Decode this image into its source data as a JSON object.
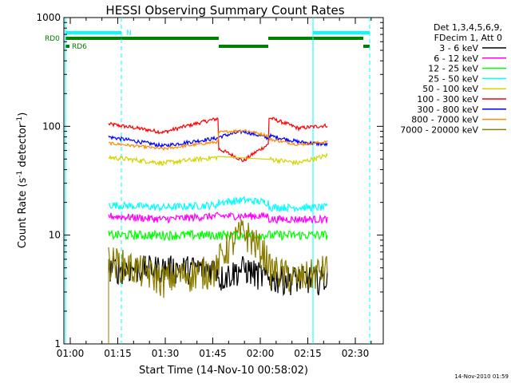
{
  "chart_data": {
    "type": "line",
    "title": "HESSI Observing Summary Count Rates",
    "xlabel": "Start Time (14-Nov-10 00:58:02)",
    "ylabel_parts": [
      "Count Rate (s",
      "-1",
      " detector",
      "-1",
      ")"
    ],
    "yscale": "log",
    "ylim": [
      1,
      1000
    ],
    "xlim_minutes": [
      55,
      98
    ],
    "x_ticks": [
      "01:00",
      "01:15",
      "01:30",
      "01:45",
      "02:00",
      "02:15",
      "02:30"
    ],
    "y_ticks": [
      "1",
      "10",
      "100",
      "1000"
    ],
    "legend_header": [
      "Det 1,3,4,5,6,9,",
      "FDecim 1, Att 0"
    ],
    "series": [
      {
        "name": "3 - 6 keV",
        "color": "#000000"
      },
      {
        "name": "6 - 12 keV",
        "color": "#ff00ff"
      },
      {
        "name": "12 - 25 keV",
        "color": "#00ff00"
      },
      {
        "name": "25 - 50 keV",
        "color": "#00ffff"
      },
      {
        "name": "50 - 100 keV",
        "color": "#d4d400"
      },
      {
        "name": "100 - 300 keV",
        "color": "#ff0000"
      },
      {
        "name": "300 - 800 keV",
        "color": "#0000ff"
      },
      {
        "name": "800 - 7000 keV",
        "color": "#ff8c00"
      },
      {
        "name": "7000 - 20000 keV",
        "color": "#8b7d00"
      }
    ],
    "flags": [
      {
        "label": "RD0",
        "color": "#008000"
      },
      {
        "label": "RD6",
        "color": "#008000"
      },
      {
        "label": "N",
        "color": "#00ffff"
      }
    ],
    "footer_timestamp": "14-Nov-2010 01:59"
  }
}
